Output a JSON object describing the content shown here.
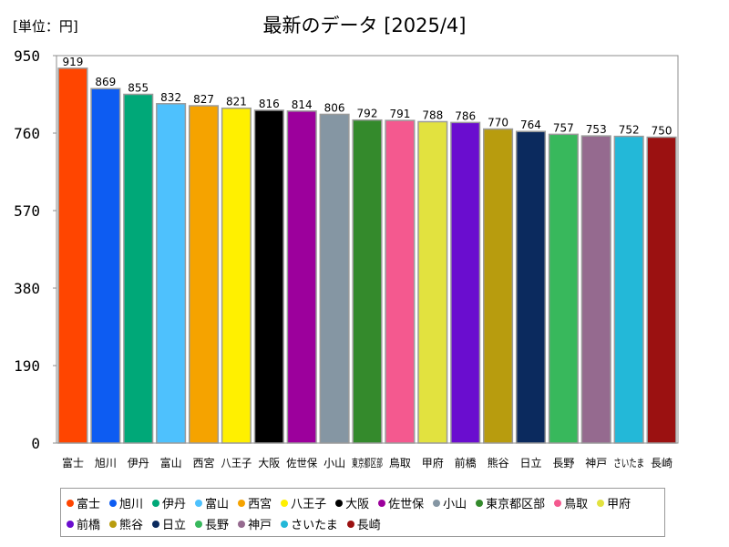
{
  "unit_label": "[単位：円]",
  "chart_data": {
    "type": "bar",
    "title": "最新のデータ [2025/4]",
    "xlabel": "",
    "ylabel": "[単位：円]",
    "ylim": [
      0,
      950
    ],
    "yticks": [
      0,
      190,
      380,
      570,
      760,
      950
    ],
    "grid": false,
    "legend_position": "bottom",
    "categories": [
      "富士",
      "旭川",
      "伊丹",
      "富山",
      "西宮",
      "八王子",
      "大阪",
      "佐世保",
      "小山",
      "東京都区部",
      "鳥取",
      "甲府",
      "前橋",
      "熊谷",
      "日立",
      "長野",
      "神戸",
      "さいたま",
      "長崎"
    ],
    "values": [
      919,
      869,
      855,
      832,
      827,
      821,
      816,
      814,
      806,
      792,
      791,
      788,
      786,
      770,
      764,
      757,
      753,
      752,
      750
    ],
    "colors": [
      "#ff4500",
      "#0d5cf2",
      "#00a878",
      "#4ec1fd",
      "#f5a300",
      "#fff000",
      "#000000",
      "#9c009c",
      "#8596a3",
      "#348a2c",
      "#f4598f",
      "#e2e23f",
      "#6a0dcf",
      "#b89c0e",
      "#0b2a5e",
      "#38b85c",
      "#956a8f",
      "#23b8d8",
      "#9b1111"
    ]
  }
}
